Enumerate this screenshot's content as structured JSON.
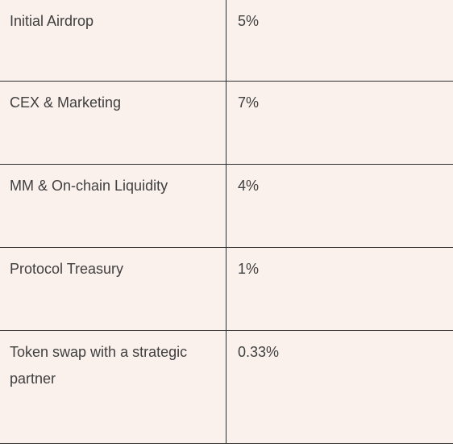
{
  "allocation_table": {
    "rows": [
      {
        "name": "Initial Airdrop",
        "value": "5%"
      },
      {
        "name": "CEX & Marketing",
        "value": "7%"
      },
      {
        "name": "MM & On-chain Liquidity",
        "value": "4%"
      },
      {
        "name": "Protocol Treasury",
        "value": "1%"
      },
      {
        "name": "Token swap with a strategic partner",
        "value": "0.33%"
      }
    ]
  }
}
